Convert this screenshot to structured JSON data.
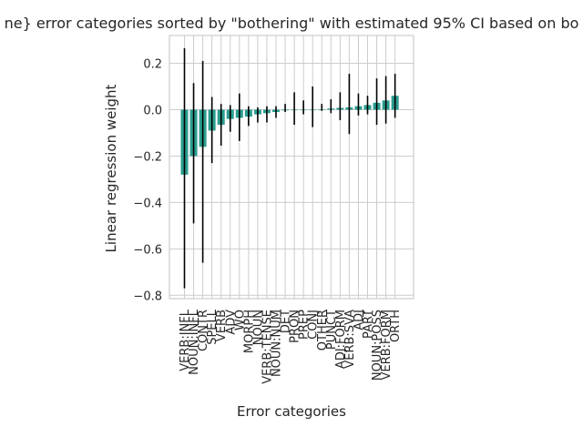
{
  "chart_data": {
    "type": "bar",
    "title": "ne} error categories sorted by \"bothering\" with estimated 95% CI based on bo",
    "xlabel": "Error categories",
    "ylabel": "Linear regression weight",
    "ylim": [
      -0.82,
      0.32
    ],
    "yticks": [
      0.2,
      0.0,
      -0.2,
      -0.4,
      -0.6,
      -0.8
    ],
    "ytick_labels": [
      "0.2",
      "0.0",
      "−0.2",
      "−0.4",
      "−0.6",
      "−0.8"
    ],
    "grid": true,
    "bar_color": "#2a9d8f",
    "errorbar_color": "#000000",
    "categories": [
      "VERB:INFL",
      "NOUN:INFL",
      "CONTR",
      "SPELL",
      "VERB",
      "ADV",
      "WO",
      "MORPH",
      "NOUN",
      "VERB:TENSE",
      "NOUN:NUM",
      "DET",
      "PRON",
      "PREP",
      "CONJ",
      "OTHER",
      "PUNCT",
      "ADJ:FORM",
      "VERB:SVA",
      "ADJ",
      "PART",
      "NOUN:POSS",
      "VERB:FORM",
      "ORTH"
    ],
    "values": [
      -0.28,
      -0.2,
      -0.16,
      -0.09,
      -0.065,
      -0.04,
      -0.035,
      -0.03,
      -0.02,
      -0.015,
      -0.01,
      -0.003,
      0.0,
      0.0,
      0.0,
      0.002,
      0.005,
      0.008,
      0.01,
      0.015,
      0.02,
      0.03,
      0.04,
      0.06
    ],
    "ci_low": [
      -0.77,
      -0.49,
      -0.66,
      -0.23,
      -0.155,
      -0.095,
      -0.135,
      -0.07,
      -0.055,
      -0.055,
      -0.035,
      -0.01,
      -0.065,
      -0.02,
      -0.075,
      -0.005,
      -0.015,
      -0.045,
      -0.105,
      -0.025,
      -0.02,
      -0.065,
      -0.06,
      -0.035
    ],
    "ci_high": [
      0.265,
      0.115,
      0.21,
      0.055,
      0.025,
      0.02,
      0.07,
      0.015,
      0.01,
      0.015,
      0.015,
      0.025,
      0.075,
      0.04,
      0.1,
      0.025,
      0.045,
      0.075,
      0.155,
      0.07,
      0.06,
      0.135,
      0.145,
      0.155
    ]
  }
}
